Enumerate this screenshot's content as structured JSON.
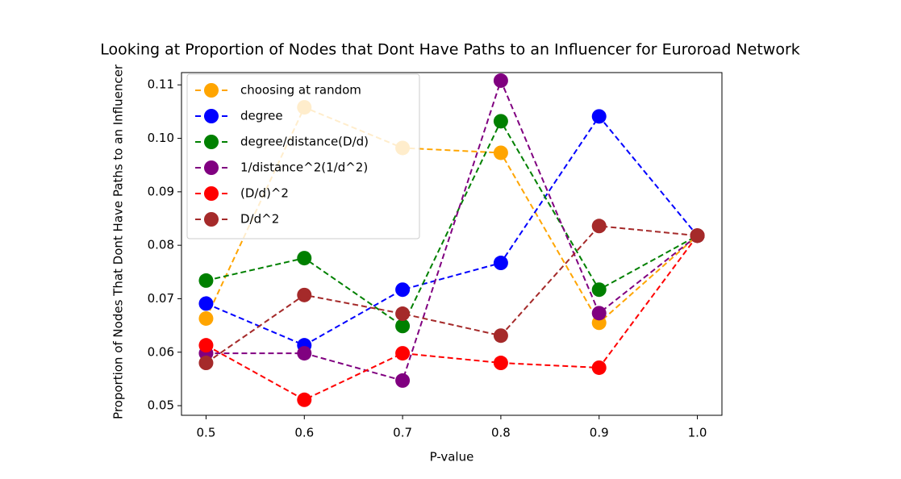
{
  "chart_data": {
    "type": "line",
    "title": "Looking at Proportion of Nodes that Dont Have Paths to an Influencer for Euroroad Network",
    "xlabel": "P-value",
    "ylabel": "Proportion of Nodes That Dont Have Paths to an Influencer",
    "x": [
      0.5,
      0.6,
      0.7,
      0.8,
      0.9,
      1.0
    ],
    "series": [
      {
        "name": "choosing at random",
        "color": "orange",
        "values": [
          0.0663,
          0.1058,
          0.0982,
          0.0973,
          0.0655,
          0.0818
        ]
      },
      {
        "name": "degree",
        "color": "blue",
        "values": [
          0.0691,
          0.0613,
          0.0717,
          0.0767,
          0.1041,
          0.0818
        ]
      },
      {
        "name": "degree/distance(D/d)",
        "color": "green",
        "values": [
          0.0734,
          0.0776,
          0.0649,
          0.1032,
          0.0717,
          0.0818
        ]
      },
      {
        "name": "1/distance^2(1/d^2)",
        "color": "purple",
        "values": [
          0.0598,
          0.0598,
          0.0547,
          0.1108,
          0.0673,
          0.0818
        ]
      },
      {
        "name": "(D/d)^2",
        "color": "red",
        "values": [
          0.0613,
          0.0511,
          0.0598,
          0.058,
          0.0571,
          0.0818
        ]
      },
      {
        "name": "D/d^2",
        "color": "brown",
        "values": [
          0.058,
          0.0707,
          0.0672,
          0.0631,
          0.0836,
          0.0818
        ]
      }
    ],
    "xlim": [
      0.475,
      1.025
    ],
    "ylim": [
      0.0482,
      0.1123
    ],
    "xticks": [
      0.5,
      0.6,
      0.7,
      0.8,
      0.9,
      {
        "value": 1.0,
        "label": "1.0"
      }
    ],
    "yticks": [
      0.05,
      {
        "value": 0.06,
        "label": "0.06"
      },
      {
        "value": 0.07,
        "label": "0.07"
      },
      {
        "value": 0.08,
        "label": "0.08"
      },
      {
        "value": 0.09,
        "label": "0.09"
      },
      {
        "value": 0.1,
        "label": "0.10"
      },
      0.11
    ],
    "legend": "upper left"
  }
}
